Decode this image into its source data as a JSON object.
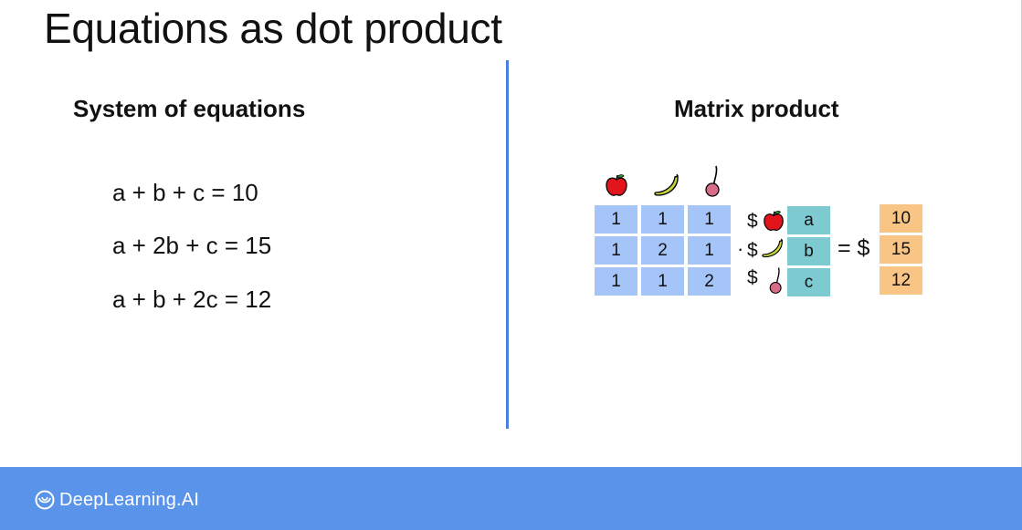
{
  "slide": {
    "title": "Equations as dot product"
  },
  "left": {
    "heading": "System of equations",
    "equations": [
      "a + b + c = 10",
      "a + 2b + c = 15",
      "a + b + 2c = 12"
    ]
  },
  "right": {
    "heading": "Matrix product",
    "matrix": [
      [
        "1",
        "1",
        "1"
      ],
      [
        "1",
        "2",
        "1"
      ],
      [
        "1",
        "1",
        "2"
      ]
    ],
    "dot_symbol": "·",
    "price_symbol": "$",
    "variables": [
      "a",
      "b",
      "c"
    ],
    "equals_symbol": "= $",
    "results": [
      "10",
      "15",
      "12"
    ],
    "fruit_icons": [
      "apple-icon",
      "banana-icon",
      "cherry-icon"
    ],
    "colors": {
      "matrix_cell": "#a5c4f8",
      "variable_cell": "#7ecad1",
      "result_cell": "#f9c585"
    }
  },
  "footer": {
    "logo_text": "DeepLearning.AI",
    "background": "#5a93ea"
  }
}
